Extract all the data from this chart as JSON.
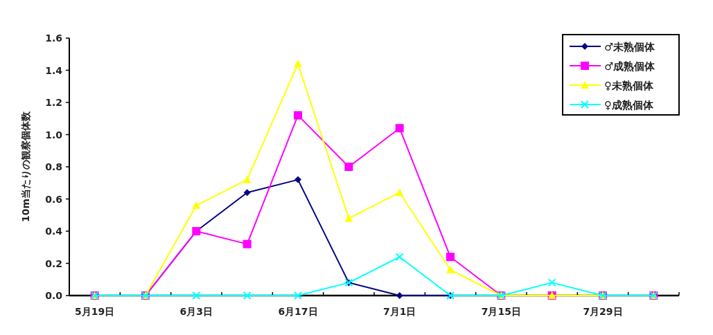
{
  "chart_data": {
    "type": "line",
    "ylabel": "10m当たりの観察個体数",
    "categories": [
      "5月19日",
      null,
      "6月3日",
      null,
      "6月17日",
      null,
      "7月1日",
      null,
      "7月15日",
      null,
      "7月29日",
      null
    ],
    "series": [
      {
        "name": "♂未熟個体",
        "color": "#000080",
        "marker": "diamond",
        "values": [
          0,
          0,
          0.4,
          0.64,
          0.72,
          0.08,
          0,
          0,
          null,
          null,
          null,
          null
        ]
      },
      {
        "name": "♂成熟個体",
        "color": "#ff00ff",
        "marker": "square",
        "values": [
          0,
          0,
          0.4,
          0.32,
          1.12,
          0.8,
          1.04,
          0.24,
          0,
          0,
          0,
          0
        ]
      },
      {
        "name": "♀未熟個体",
        "color": "#ffff00",
        "marker": "triangle",
        "values": [
          0,
          0,
          0.56,
          0.72,
          1.44,
          0.48,
          0.64,
          0.16,
          0,
          0,
          0,
          0
        ]
      },
      {
        "name": "♀成熟個体",
        "color": "#00ffff",
        "marker": "cross",
        "values": [
          0,
          0,
          0,
          0,
          0,
          0.08,
          0.24,
          0,
          0,
          0.08,
          0,
          0
        ]
      }
    ],
    "ylim": [
      0,
      1.6
    ],
    "yticks": [
      {
        "value": 0,
        "label": "0.0"
      },
      {
        "value": 0.2,
        "label": "0.2"
      },
      {
        "value": 0.4,
        "label": "0.4"
      },
      {
        "value": 0.6,
        "label": "0.6"
      },
      {
        "value": 0.8,
        "label": "0.8"
      },
      {
        "value": 1.0,
        "label": "1.0"
      },
      {
        "value": 1.2,
        "label": "1.2"
      },
      {
        "value": 1.4,
        "label": "1.4"
      },
      {
        "value": 1.6,
        "label": "1.6"
      }
    ],
    "grid": false,
    "legend": "top right",
    "line_style": "solid"
  }
}
